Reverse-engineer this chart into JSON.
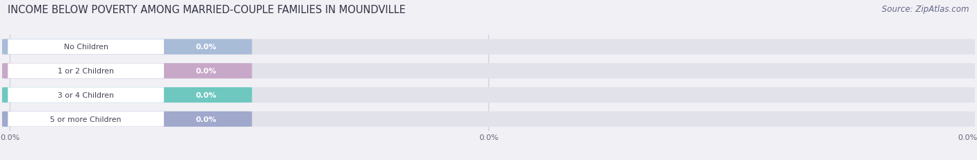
{
  "title": "INCOME BELOW POVERTY AMONG MARRIED-COUPLE FAMILIES IN MOUNDVILLE",
  "source": "Source: ZipAtlas.com",
  "categories": [
    "No Children",
    "1 or 2 Children",
    "3 or 4 Children",
    "5 or more Children"
  ],
  "values": [
    0.0,
    0.0,
    0.0,
    0.0
  ],
  "bar_colors": [
    "#a8bcd8",
    "#c8a8c8",
    "#6ec8c0",
    "#a0a8cc"
  ],
  "background_color": "#f0f0f5",
  "bar_bg_color": "#e2e2ea",
  "title_fontsize": 10.5,
  "source_fontsize": 8.5,
  "figsize": [
    14.06,
    2.32
  ],
  "dpi": 100
}
